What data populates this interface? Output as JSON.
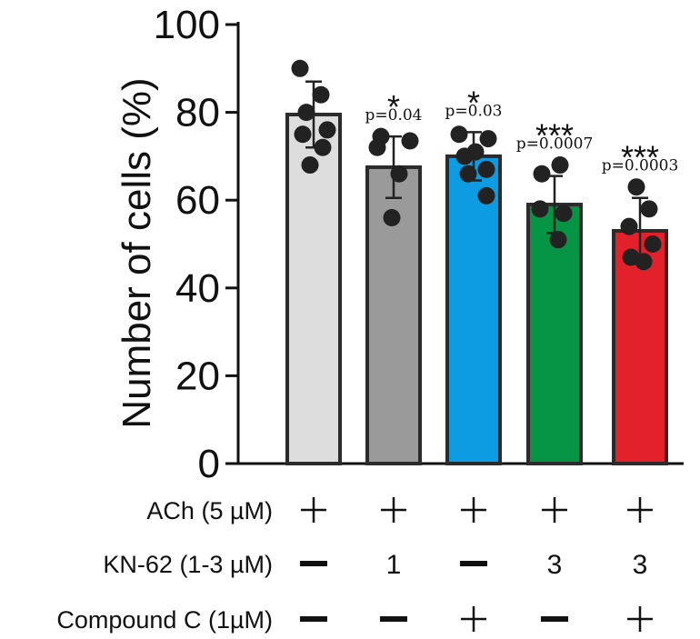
{
  "chart_data": {
    "type": "bar",
    "ylabel": "Number of cells (%)",
    "ylim": [
      0,
      100
    ],
    "yticks": [
      0,
      20,
      40,
      60,
      80,
      100
    ],
    "series": [
      {
        "name": "ACh",
        "mean": 79.5,
        "sd": 7.5,
        "color": "#dcdddc",
        "points": [
          90,
          84,
          80,
          76,
          75,
          72,
          68
        ],
        "stars": "",
        "p_label": ""
      },
      {
        "name": "ACh + KN-62 1",
        "mean": 67.5,
        "sd": 7.0,
        "color": "#9a9a9a",
        "points": [
          74.5,
          73.5,
          72,
          66,
          56
        ],
        "stars": "*",
        "p_label": "p=0.04"
      },
      {
        "name": "ACh + Compound C",
        "mean": 70.0,
        "sd": 5.5,
        "color": "#0d9be2",
        "points": [
          75,
          74,
          71,
          70,
          67,
          66,
          61
        ],
        "stars": "*",
        "p_label": "p=0.03"
      },
      {
        "name": "ACh + KN-62 3",
        "mean": 59.0,
        "sd": 6.5,
        "color": "#049444",
        "points": [
          68,
          66,
          58,
          57,
          51
        ],
        "stars": "***",
        "p_label": "p=0.0007"
      },
      {
        "name": "ACh + KN-62 3 + Compound C",
        "mean": 53.0,
        "sd": 7.5,
        "color": "#e3212a",
        "points": [
          63,
          58,
          54,
          50,
          47,
          46
        ],
        "stars": "***",
        "p_label": "p=0.0003"
      }
    ],
    "conditions": [
      {
        "label": "ACh (5 µM)",
        "values": [
          "+",
          "+",
          "+",
          "+",
          "+"
        ]
      },
      {
        "label": "KN-62 (1-3 µM)",
        "values": [
          "−",
          "1",
          "−",
          "3",
          "3"
        ]
      },
      {
        "label": "Compound C (1µM)",
        "values": [
          "−",
          "−",
          "+",
          "−",
          "+"
        ]
      }
    ]
  }
}
